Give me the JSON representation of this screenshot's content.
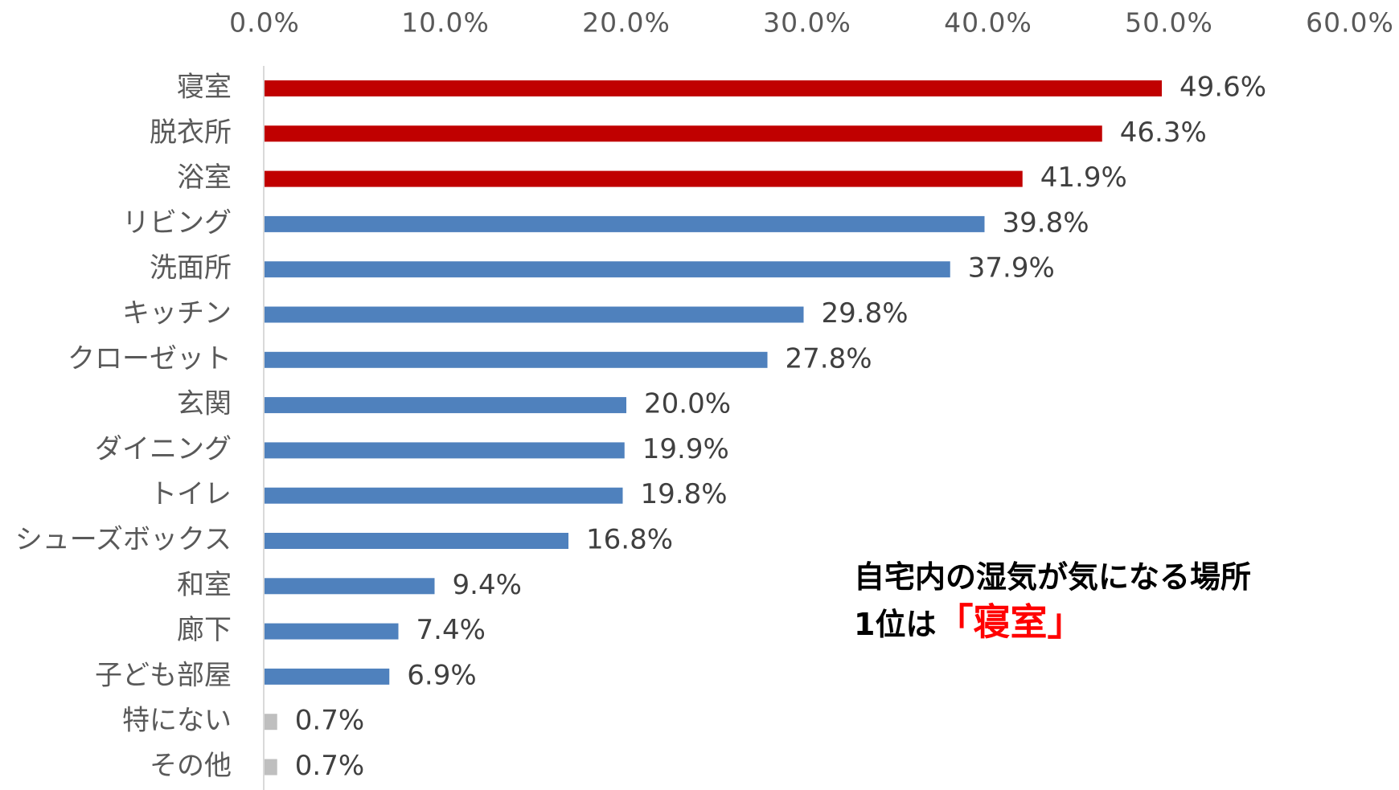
{
  "chart_data": {
    "type": "bar",
    "orientation": "horizontal",
    "title": "",
    "xlabel": "",
    "ylabel": "",
    "xlim": [
      0,
      60
    ],
    "ticks": [
      "0.0%",
      "10.0%",
      "20.0%",
      "30.0%",
      "40.0%",
      "50.0%",
      "60.0%"
    ],
    "tick_values": [
      0,
      10,
      20,
      30,
      40,
      50,
      60
    ],
    "axis_position": "top",
    "grid": false,
    "categories": [
      "寝室",
      "脱衣所",
      "浴室",
      "リビング",
      "洗面所",
      "キッチン",
      "クローゼット",
      "玄関",
      "ダイニング",
      "トイレ",
      "シューズボックス",
      "和室",
      "廊下",
      "子ども部屋",
      "特にない",
      "その他"
    ],
    "values": [
      49.6,
      46.3,
      41.9,
      39.8,
      37.9,
      29.8,
      27.8,
      20.0,
      19.9,
      19.8,
      16.8,
      9.4,
      7.4,
      6.9,
      0.7,
      0.7
    ],
    "value_labels": [
      "49.6%",
      "46.3%",
      "41.9%",
      "39.8%",
      "37.9%",
      "29.8%",
      "27.8%",
      "20.0%",
      "19.9%",
      "19.8%",
      "16.8%",
      "9.4%",
      "7.4%",
      "6.9%",
      "0.7%",
      "0.7%"
    ],
    "bar_colors": [
      "#c00000",
      "#c00000",
      "#c00000",
      "#4f81bd",
      "#4f81bd",
      "#4f81bd",
      "#4f81bd",
      "#4f81bd",
      "#4f81bd",
      "#4f81bd",
      "#4f81bd",
      "#4f81bd",
      "#4f81bd",
      "#4f81bd",
      "#bfbfbf",
      "#bfbfbf"
    ]
  },
  "annotation": {
    "line1": "自宅内の湿気が気になる場所",
    "line2_prefix": "1位は",
    "line2_highlight": "「寝室」"
  },
  "colors": {
    "highlight": "#c00000",
    "default": "#4f81bd",
    "other": "#bfbfbf",
    "annotation_accent": "#ff0000"
  }
}
